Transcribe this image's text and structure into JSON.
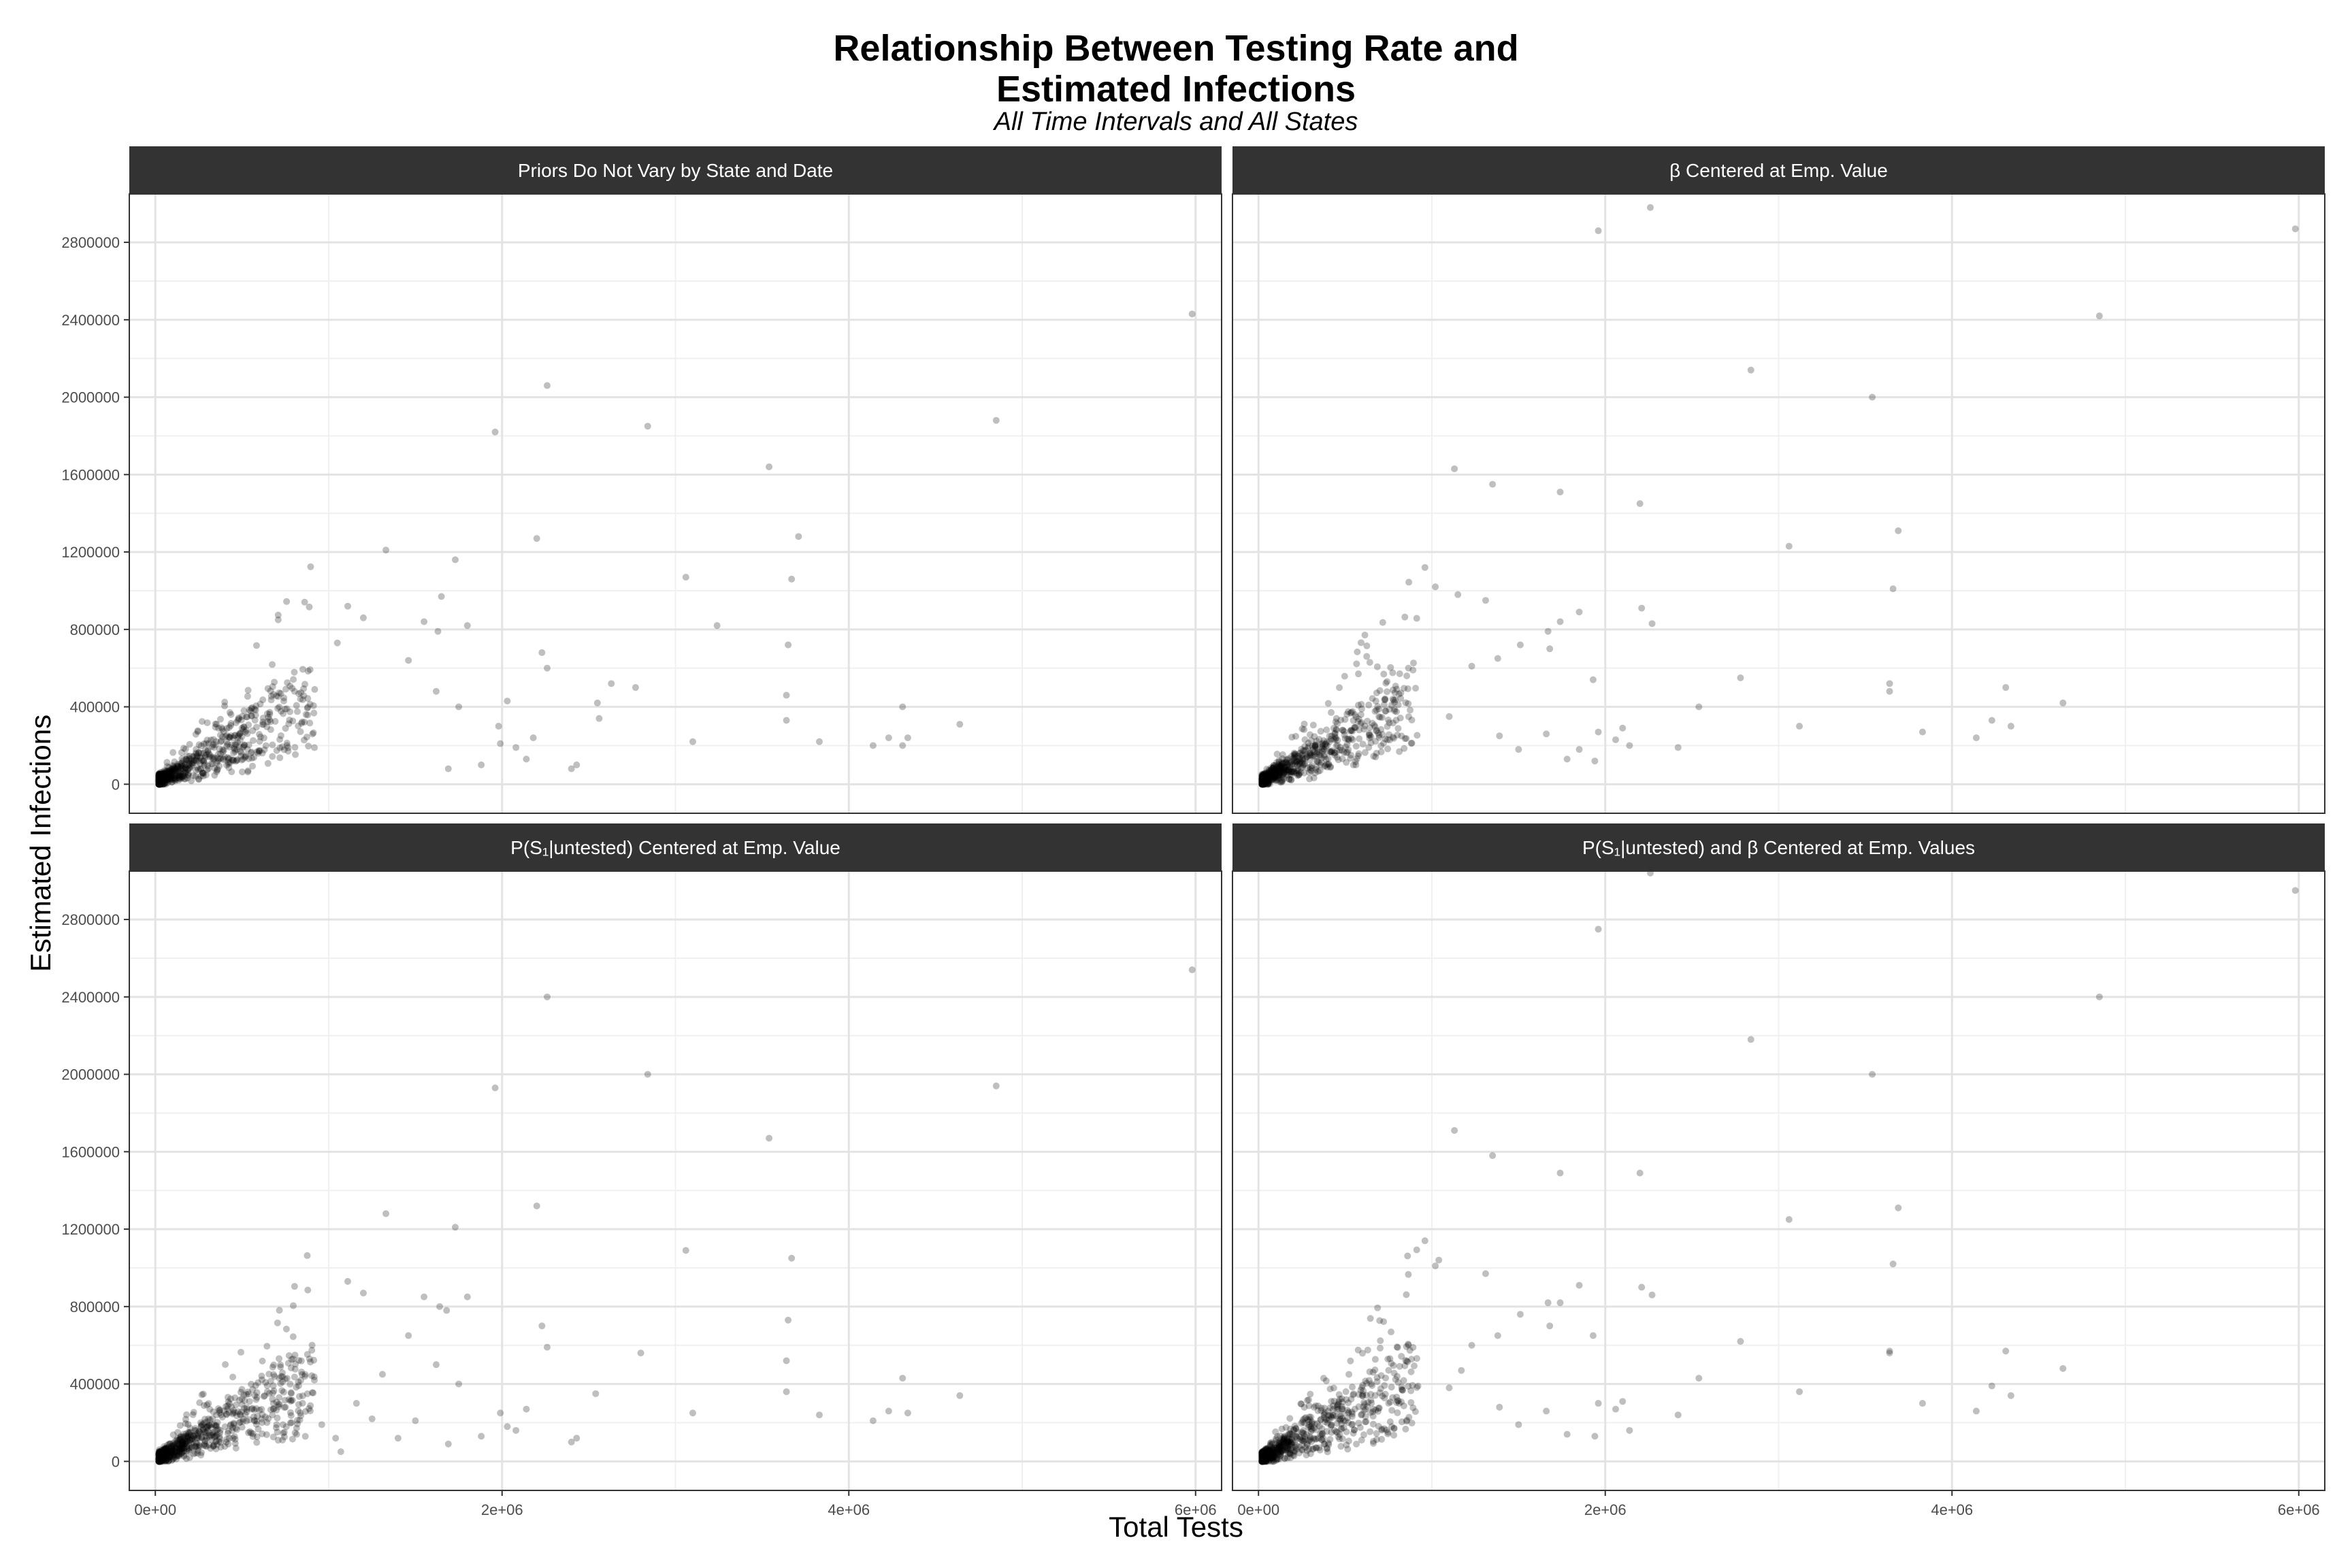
{
  "title_line1": "Relationship Between Testing Rate and",
  "title_line2": "Estimated Infections",
  "subtitle": "All Time Intervals and All States",
  "xlabel": "Total Tests",
  "ylabel": "Estimated Infections",
  "chart_data": {
    "type": "scatter",
    "layout": "facet grid 2x2",
    "xlabel": "Total Tests",
    "ylabel": "Estimated Infections",
    "xlim": [
      -150000,
      6150000
    ],
    "ylim": [
      -150000,
      3050000
    ],
    "x_ticks": [
      0,
      2000000,
      4000000,
      6000000
    ],
    "x_tick_labels": [
      "0e+00",
      "2e+06",
      "4e+06",
      "6e+06"
    ],
    "y_ticks": [
      0,
      400000,
      800000,
      1200000,
      1600000,
      2000000,
      2400000,
      2800000
    ],
    "y_tick_labels": [
      "0",
      "400000",
      "800000",
      "1200000",
      "1600000",
      "2000000",
      "2400000",
      "2800000"
    ],
    "grid": true,
    "point_color": "#000000",
    "point_opacity": 0.25,
    "strip_color": "#333333",
    "panels": [
      {
        "label": "Priors Do Not Vary by State and Date",
        "points": [
          [
            5980000,
            2430000
          ],
          [
            4850000,
            1880000
          ],
          [
            2840000,
            1850000
          ],
          [
            2260000,
            2060000
          ],
          [
            1960000,
            1820000
          ],
          [
            3540000,
            1640000
          ],
          [
            3710000,
            1280000
          ],
          [
            3670000,
            1060000
          ],
          [
            3060000,
            1070000
          ],
          [
            2200000,
            1270000
          ],
          [
            1330000,
            1210000
          ],
          [
            1730000,
            1160000
          ],
          [
            1650000,
            970000
          ],
          [
            3240000,
            820000
          ],
          [
            3650000,
            720000
          ],
          [
            3640000,
            460000
          ],
          [
            3640000,
            330000
          ],
          [
            2230000,
            680000
          ],
          [
            2260000,
            600000
          ],
          [
            2560000,
            340000
          ],
          [
            2630000,
            520000
          ],
          [
            2770000,
            500000
          ],
          [
            2550000,
            420000
          ],
          [
            3100000,
            220000
          ],
          [
            3830000,
            220000
          ],
          [
            4140000,
            200000
          ],
          [
            4230000,
            240000
          ],
          [
            4310000,
            400000
          ],
          [
            4340000,
            240000
          ],
          [
            4640000,
            310000
          ],
          [
            4310000,
            200000
          ],
          [
            1990000,
            210000
          ],
          [
            2080000,
            190000
          ],
          [
            2140000,
            130000
          ],
          [
            1800000,
            820000
          ],
          [
            1110000,
            920000
          ],
          [
            1050000,
            730000
          ],
          [
            1200000,
            860000
          ],
          [
            1550000,
            840000
          ],
          [
            1630000,
            790000
          ],
          [
            1460000,
            640000
          ],
          [
            1620000,
            480000
          ],
          [
            1750000,
            400000
          ],
          [
            2030000,
            430000
          ],
          [
            2180000,
            240000
          ],
          [
            2430000,
            100000
          ],
          [
            2400000,
            80000
          ],
          [
            1980000,
            300000
          ],
          [
            1880000,
            100000
          ],
          [
            1690000,
            80000
          ]
        ]
      },
      {
        "label": "β Centered at Emp. Value",
        "points": [
          [
            2260000,
            2980000
          ],
          [
            1960000,
            2860000
          ],
          [
            5980000,
            2870000
          ],
          [
            4850000,
            2420000
          ],
          [
            2840000,
            2140000
          ],
          [
            3540000,
            2000000
          ],
          [
            1130000,
            1630000
          ],
          [
            1350000,
            1550000
          ],
          [
            1740000,
            1510000
          ],
          [
            2200000,
            1450000
          ],
          [
            3690000,
            1310000
          ],
          [
            3060000,
            1230000
          ],
          [
            3660000,
            1010000
          ],
          [
            960000,
            1120000
          ],
          [
            1020000,
            1020000
          ],
          [
            1310000,
            950000
          ],
          [
            2210000,
            910000
          ],
          [
            2270000,
            830000
          ],
          [
            1670000,
            790000
          ],
          [
            1850000,
            890000
          ],
          [
            1680000,
            700000
          ],
          [
            1740000,
            840000
          ],
          [
            1930000,
            540000
          ],
          [
            2780000,
            550000
          ],
          [
            3640000,
            520000
          ],
          [
            3640000,
            480000
          ],
          [
            4310000,
            500000
          ],
          [
            4640000,
            420000
          ],
          [
            3120000,
            300000
          ],
          [
            3830000,
            270000
          ],
          [
            4140000,
            240000
          ],
          [
            4230000,
            330000
          ],
          [
            4340000,
            300000
          ],
          [
            2540000,
            400000
          ],
          [
            2420000,
            190000
          ],
          [
            2060000,
            230000
          ],
          [
            1960000,
            270000
          ],
          [
            2100000,
            290000
          ],
          [
            2140000,
            200000
          ],
          [
            1510000,
            720000
          ],
          [
            1380000,
            650000
          ],
          [
            1230000,
            610000
          ],
          [
            1100000,
            350000
          ],
          [
            1390000,
            250000
          ],
          [
            1500000,
            180000
          ],
          [
            1660000,
            260000
          ],
          [
            1780000,
            130000
          ],
          [
            1850000,
            180000
          ],
          [
            1940000,
            120000
          ],
          [
            1150000,
            980000
          ]
        ]
      },
      {
        "label": "P(S₁|untested) Centered at Emp. Value",
        "points": [
          [
            5980000,
            2540000
          ],
          [
            2260000,
            2400000
          ],
          [
            2840000,
            2000000
          ],
          [
            1960000,
            1930000
          ],
          [
            4850000,
            1940000
          ],
          [
            3540000,
            1670000
          ],
          [
            2200000,
            1320000
          ],
          [
            1330000,
            1280000
          ],
          [
            1730000,
            1210000
          ],
          [
            3060000,
            1090000
          ],
          [
            3670000,
            1050000
          ],
          [
            1110000,
            930000
          ],
          [
            1200000,
            870000
          ],
          [
            1550000,
            850000
          ],
          [
            1800000,
            850000
          ],
          [
            1640000,
            800000
          ],
          [
            1680000,
            780000
          ],
          [
            3650000,
            730000
          ],
          [
            2230000,
            700000
          ],
          [
            2260000,
            590000
          ],
          [
            2800000,
            560000
          ],
          [
            3640000,
            520000
          ],
          [
            3640000,
            360000
          ],
          [
            2540000,
            350000
          ],
          [
            3100000,
            250000
          ],
          [
            3830000,
            240000
          ],
          [
            4140000,
            210000
          ],
          [
            4230000,
            260000
          ],
          [
            4310000,
            430000
          ],
          [
            4340000,
            250000
          ],
          [
            4640000,
            340000
          ],
          [
            2030000,
            180000
          ],
          [
            2080000,
            160000
          ],
          [
            2140000,
            270000
          ],
          [
            2430000,
            120000
          ],
          [
            2400000,
            100000
          ],
          [
            1990000,
            250000
          ],
          [
            1880000,
            130000
          ],
          [
            1690000,
            90000
          ],
          [
            1460000,
            650000
          ],
          [
            1620000,
            500000
          ],
          [
            1750000,
            400000
          ],
          [
            1310000,
            450000
          ],
          [
            1500000,
            210000
          ],
          [
            1400000,
            120000
          ],
          [
            1250000,
            220000
          ],
          [
            1160000,
            300000
          ],
          [
            1040000,
            120000
          ],
          [
            960000,
            190000
          ],
          [
            1070000,
            50000
          ]
        ]
      },
      {
        "label": "P(S₁|untested) and β Centered at Emp. Values",
        "points": [
          [
            2260000,
            3040000
          ],
          [
            1960000,
            2750000
          ],
          [
            5980000,
            2950000
          ],
          [
            4850000,
            2400000
          ],
          [
            2840000,
            2180000
          ],
          [
            3540000,
            2000000
          ],
          [
            1130000,
            1710000
          ],
          [
            1350000,
            1580000
          ],
          [
            1740000,
            1490000
          ],
          [
            2200000,
            1490000
          ],
          [
            3690000,
            1310000
          ],
          [
            3060000,
            1250000
          ],
          [
            3660000,
            1020000
          ],
          [
            960000,
            1140000
          ],
          [
            1020000,
            1010000
          ],
          [
            1040000,
            1040000
          ],
          [
            1310000,
            970000
          ],
          [
            2210000,
            900000
          ],
          [
            2270000,
            860000
          ],
          [
            1850000,
            910000
          ],
          [
            1670000,
            820000
          ],
          [
            1740000,
            820000
          ],
          [
            1680000,
            700000
          ],
          [
            1930000,
            650000
          ],
          [
            2780000,
            620000
          ],
          [
            3640000,
            570000
          ],
          [
            3640000,
            560000
          ],
          [
            4310000,
            570000
          ],
          [
            4640000,
            480000
          ],
          [
            3120000,
            360000
          ],
          [
            3830000,
            300000
          ],
          [
            4140000,
            260000
          ],
          [
            4230000,
            390000
          ],
          [
            4340000,
            340000
          ],
          [
            2540000,
            430000
          ],
          [
            2420000,
            240000
          ],
          [
            2060000,
            270000
          ],
          [
            1960000,
            300000
          ],
          [
            2100000,
            310000
          ],
          [
            2140000,
            160000
          ],
          [
            1510000,
            760000
          ],
          [
            1380000,
            650000
          ],
          [
            1230000,
            600000
          ],
          [
            1100000,
            380000
          ],
          [
            1390000,
            280000
          ],
          [
            1500000,
            190000
          ],
          [
            1660000,
            260000
          ],
          [
            1780000,
            140000
          ],
          [
            1940000,
            130000
          ],
          [
            1170000,
            470000
          ]
        ]
      }
    ]
  }
}
